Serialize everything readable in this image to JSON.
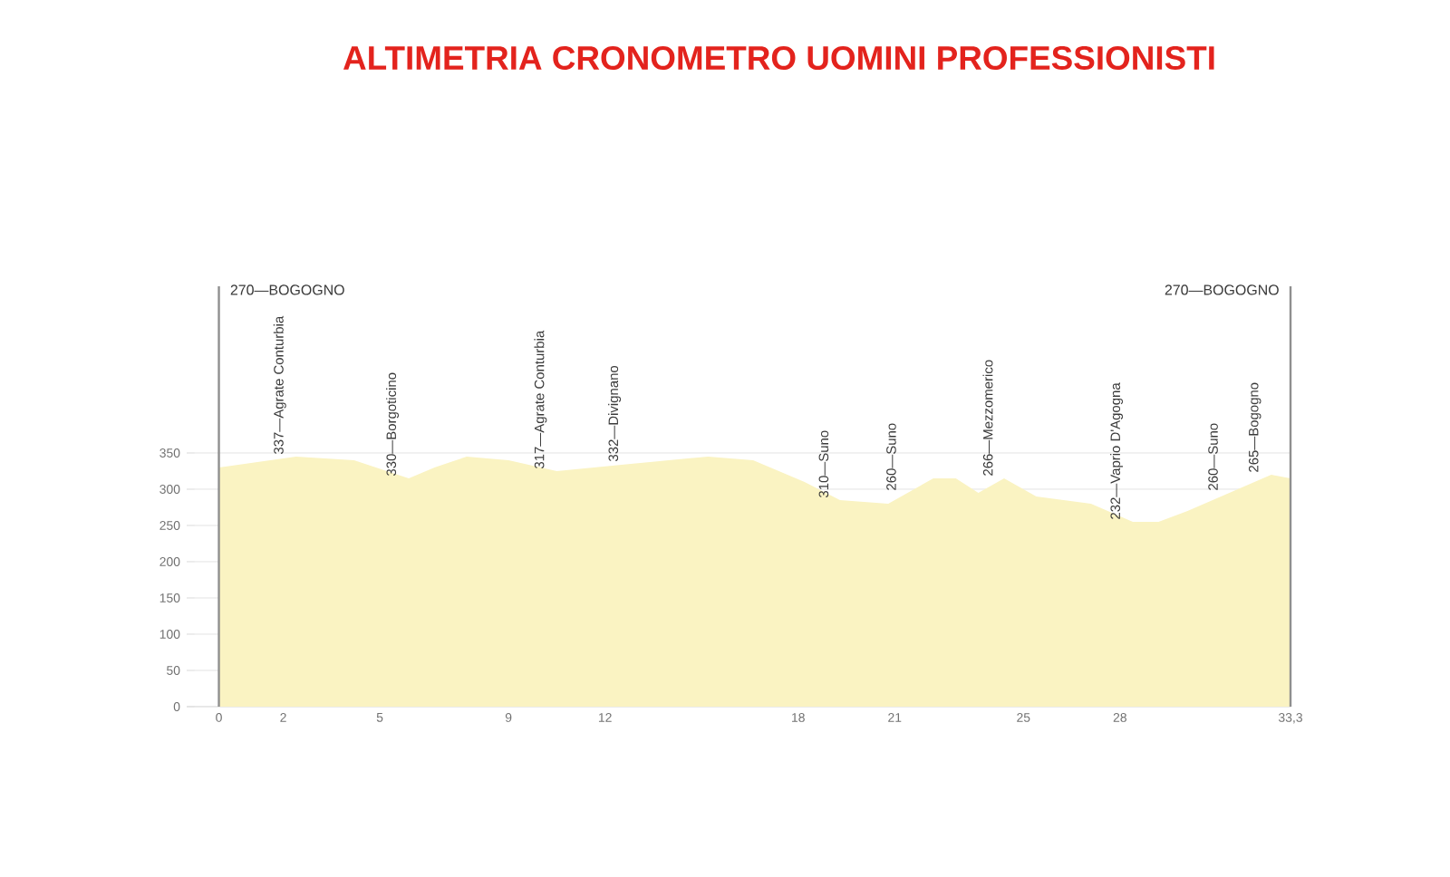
{
  "chart_data": {
    "type": "area",
    "title": "ALTIMETRIA CRONOMETRO UOMINI PROFESSIONISTI",
    "x": [
      0,
      2.4,
      4.2,
      5.9,
      6.7,
      7.7,
      9,
      10.5,
      12.8,
      15.2,
      16.6,
      18.2,
      19.3,
      20.8,
      22.2,
      22.9,
      23.6,
      24.4,
      25.4,
      27.1,
      28.4,
      29.2,
      30.1,
      31.4,
      32.7,
      33.3
    ],
    "values": [
      330,
      345,
      340,
      315,
      330,
      345,
      340,
      325,
      335,
      345,
      340,
      310,
      285,
      280,
      315,
      315,
      295,
      315,
      290,
      280,
      255,
      255,
      270,
      295,
      320,
      315
    ],
    "color": "#faf3c2",
    "xlim": [
      -1,
      33.3
    ],
    "ylim": [
      0,
      580
    ],
    "xticks": [
      0,
      2,
      5,
      9,
      12,
      18,
      21,
      25,
      28,
      {
        "value": 33.3,
        "label": "33,3"
      }
    ],
    "yticks": [
      0,
      50,
      100,
      150,
      200,
      250,
      300,
      350
    ],
    "grid": "y",
    "annotations": [
      {
        "text": "337—Agrate Conturbia",
        "x": 2.4,
        "y": 345
      },
      {
        "text": "330—Borgoticino",
        "x": 5.9,
        "y": 315
      },
      {
        "text": "317—Agrate Conturbia",
        "x": 10.5,
        "y": 325
      },
      {
        "text": "332—Divignano",
        "x": 12.8,
        "y": 335
      },
      {
        "text": "310—Suno",
        "x": 19.3,
        "y": 285
      },
      {
        "text": "260—Suno",
        "x": 21.4,
        "y": 295
      },
      {
        "text": "266—Mezzomerico",
        "x": 24.4,
        "y": 315
      },
      {
        "text": "232—Vaprio D'Agogna",
        "x": 28.4,
        "y": 255
      },
      {
        "text": "260—Suno",
        "x": 31.4,
        "y": 295
      },
      {
        "text": "265—Bogogno",
        "x": 32.7,
        "y": 320
      }
    ],
    "ref_lines": [
      {
        "axis": "x",
        "value": 0,
        "label": "270—BOGOGNO",
        "color": "#8f8f8f"
      },
      {
        "axis": "x",
        "value": 33.3,
        "label": "270—BOGOGNO",
        "color": "#8f8f8f"
      }
    ]
  }
}
